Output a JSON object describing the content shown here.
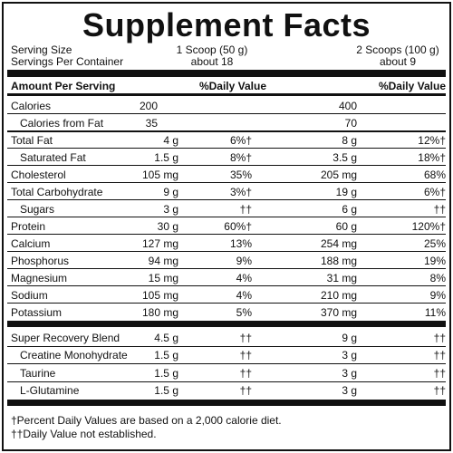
{
  "header": {
    "title": "Supplement Facts",
    "serving_size_label": "Serving Size",
    "serving_size_1": "1 Scoop (50 g)",
    "serving_size_2": "2 Scoops (100 g)",
    "servings_label": "Servings Per Container",
    "servings_1": "about 18",
    "servings_2": "about 9"
  },
  "table": {
    "amount_header": "Amount Per Serving",
    "dv_header_1": "%Daily Value",
    "dv_header_2": "%Daily Value",
    "nutrients": [
      {
        "name": "Calories",
        "amount_1": "200",
        "amount_2": "400"
      },
      {
        "name": "Calories from Fat",
        "amount_1": "35",
        "amount_2": "70"
      },
      {
        "name": "Total Fat",
        "amount_1": "4 g",
        "dv_1": "6%†",
        "amount_2": "8 g",
        "dv_2": "12%†"
      },
      {
        "name": "Saturated Fat",
        "amount_1": "1.5 g",
        "dv_1": "8%†",
        "amount_2": "3.5 g",
        "dv_2": "18%†"
      },
      {
        "name": "Cholesterol",
        "amount_1": "105 mg",
        "dv_1": "35%",
        "amount_2": "205 mg",
        "dv_2": "68%"
      },
      {
        "name": "Total Carbohydrate",
        "amount_1": "9 g",
        "dv_1": "3%†",
        "amount_2": "19 g",
        "dv_2": "6%†"
      },
      {
        "name": "Sugars",
        "amount_1": "3 g",
        "dv_1": "††",
        "amount_2": "6 g",
        "dv_2": "††"
      },
      {
        "name": "Protein",
        "amount_1": "30 g",
        "dv_1": "60%†",
        "amount_2": "60 g",
        "dv_2": "120%†"
      },
      {
        "name": "Calcium",
        "amount_1": "127 mg",
        "dv_1": "13%",
        "amount_2": "254 mg",
        "dv_2": "25%"
      },
      {
        "name": "Phosphorus",
        "amount_1": "94 mg",
        "dv_1": "9%",
        "amount_2": "188 mg",
        "dv_2": "19%"
      },
      {
        "name": "Magnesium",
        "amount_1": "15 mg",
        "dv_1": "4%",
        "amount_2": "31 mg",
        "dv_2": "8%"
      },
      {
        "name": "Sodium",
        "amount_1": "105 mg",
        "dv_1": "4%",
        "amount_2": "210 mg",
        "dv_2": "9%"
      },
      {
        "name": "Potassium",
        "amount_1": "180 mg",
        "dv_1": "5%",
        "amount_2": "370 mg",
        "dv_2": "11%"
      }
    ],
    "blend": [
      {
        "name": "Super Recovery Blend",
        "amount_1": "4.5 g",
        "dv_1": "††",
        "amount_2": "9 g",
        "dv_2": "††"
      },
      {
        "name": "Creatine Monohydrate",
        "amount_1": "1.5 g",
        "dv_1": "††",
        "amount_2": "3 g",
        "dv_2": "††"
      },
      {
        "name": "Taurine",
        "amount_1": "1.5 g",
        "dv_1": "††",
        "amount_2": "3 g",
        "dv_2": "††"
      },
      {
        "name": "L-Glutamine",
        "amount_1": "1.5 g",
        "dv_1": "††",
        "amount_2": "3 g",
        "dv_2": "††"
      }
    ]
  },
  "footnotes": [
    "†Percent Daily Values are based on a 2,000 calorie diet.",
    "††Daily Value not established."
  ]
}
